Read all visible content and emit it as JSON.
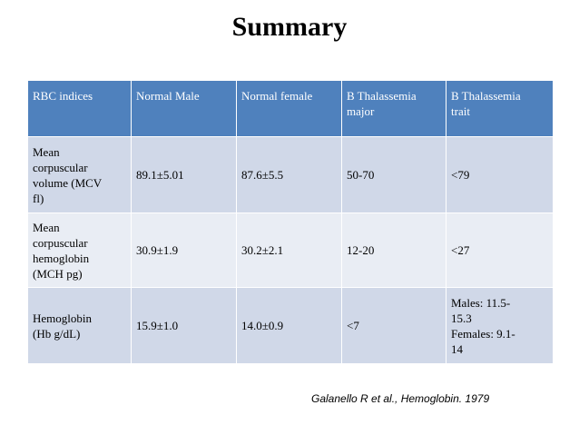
{
  "title": "Summary",
  "table": {
    "headers": [
      "RBC indices",
      "Normal Male",
      "Normal female",
      "B Thalassemia\nmajor",
      "B Thalassemia\ntrait"
    ],
    "rows": [
      {
        "index": "Mean\ncorpuscular\nvolume (MCV\nfl)",
        "male": "89.1±5.01",
        "female": "87.6±5.5",
        "major": "50-70",
        "trait": "<79"
      },
      {
        "index": "Mean\ncorpuscular\nhemoglobin\n(MCH pg)",
        "male": "30.9±1.9",
        "female": "30.2±2.1",
        "major": "12-20",
        "trait": "<27"
      },
      {
        "index": "Hemoglobin\n(Hb g/dL)",
        "male": "15.9±1.0",
        "female": "14.0±0.9",
        "major": "<7",
        "trait": "Males: 11.5-\n15.3\nFemales: 9.1-\n14"
      }
    ]
  },
  "citation": "Galanello R et al., Hemoglobin. 1979",
  "colors": {
    "header_bg": "#4f81bd",
    "row_dark": "#d0d8e8",
    "row_light": "#e9edf4"
  }
}
